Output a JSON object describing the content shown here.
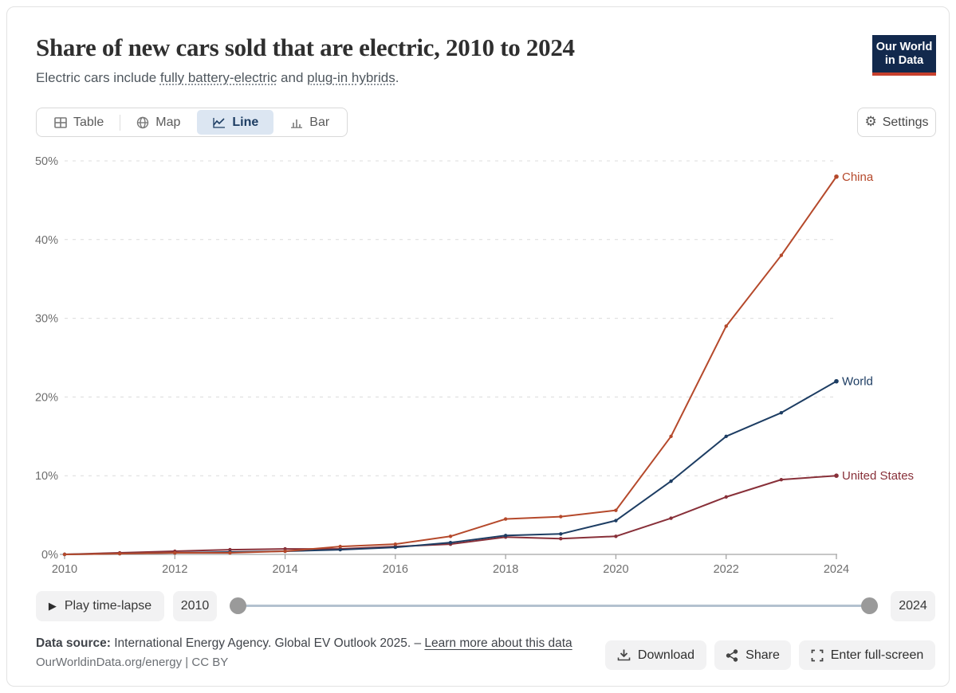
{
  "header": {
    "title": "Share of new cars sold that are electric, 2010 to 2024",
    "subtitle_prefix": "Electric cars include ",
    "subtitle_link1": "fully battery-electric",
    "subtitle_mid": " and ",
    "subtitle_link2": "plug-in hybrids",
    "subtitle_suffix": ".",
    "logo_line1": "Our World",
    "logo_line2": "in Data"
  },
  "tabs": [
    {
      "label": "Table",
      "active": false
    },
    {
      "label": "Map",
      "active": false
    },
    {
      "label": "Line",
      "active": true
    },
    {
      "label": "Bar",
      "active": false
    }
  ],
  "settings_label": "Settings",
  "chart_data": {
    "type": "line",
    "x": [
      2010,
      2011,
      2012,
      2013,
      2014,
      2015,
      2016,
      2017,
      2018,
      2019,
      2020,
      2021,
      2022,
      2023,
      2024
    ],
    "series": [
      {
        "name": "United States",
        "color": "#883039",
        "values": [
          0.0,
          0.2,
          0.4,
          0.6,
          0.7,
          0.7,
          1.0,
          1.3,
          2.2,
          2.0,
          2.3,
          4.6,
          7.3,
          9.5,
          10.0
        ]
      },
      {
        "name": "World",
        "color": "#1d3d63",
        "values": [
          0.0,
          0.1,
          0.2,
          0.3,
          0.4,
          0.6,
          0.9,
          1.5,
          2.4,
          2.6,
          4.3,
          9.3,
          15.0,
          18.0,
          22.0
        ]
      },
      {
        "name": "China",
        "color": "#b5492b",
        "values": [
          0.0,
          0.1,
          0.2,
          0.2,
          0.4,
          1.0,
          1.3,
          2.3,
          4.5,
          4.8,
          5.6,
          15.0,
          29.0,
          38.0,
          48.0
        ]
      }
    ],
    "title": "Share of new cars sold that are electric, 2010 to 2024",
    "xlabel": "",
    "ylabel": "",
    "ylim": [
      0,
      50
    ],
    "yticks": [
      0,
      10,
      20,
      30,
      40,
      50
    ],
    "ytick_suffix": "%",
    "xticks": [
      2010,
      2012,
      2014,
      2016,
      2018,
      2020,
      2022,
      2024
    ],
    "grid": "horizontal-dashed",
    "legend_position": "line-end-labels"
  },
  "timeline": {
    "play_label": "Play time-lapse",
    "start_year": "2010",
    "end_year": "2024"
  },
  "footer": {
    "source_label": "Data source:",
    "source_text": " International Energy Agency. Global EV Outlook 2025. – ",
    "source_link": "Learn more about this data",
    "credit": "OurWorldinData.org/energy | CC BY",
    "download_label": "Download",
    "share_label": "Share",
    "fullscreen_label": "Enter full-screen"
  },
  "colors": {
    "china": "#b5492b",
    "world": "#1d3d63",
    "united_states": "#883039",
    "active_tab_bg": "#dce6f2",
    "active_tab_text": "#1d3d63",
    "grid": "#dcdcdc",
    "axis": "#a5a5a5",
    "axis_text": "#6e6e6e",
    "logo_bg": "#12294d",
    "logo_red": "#c7402d"
  }
}
